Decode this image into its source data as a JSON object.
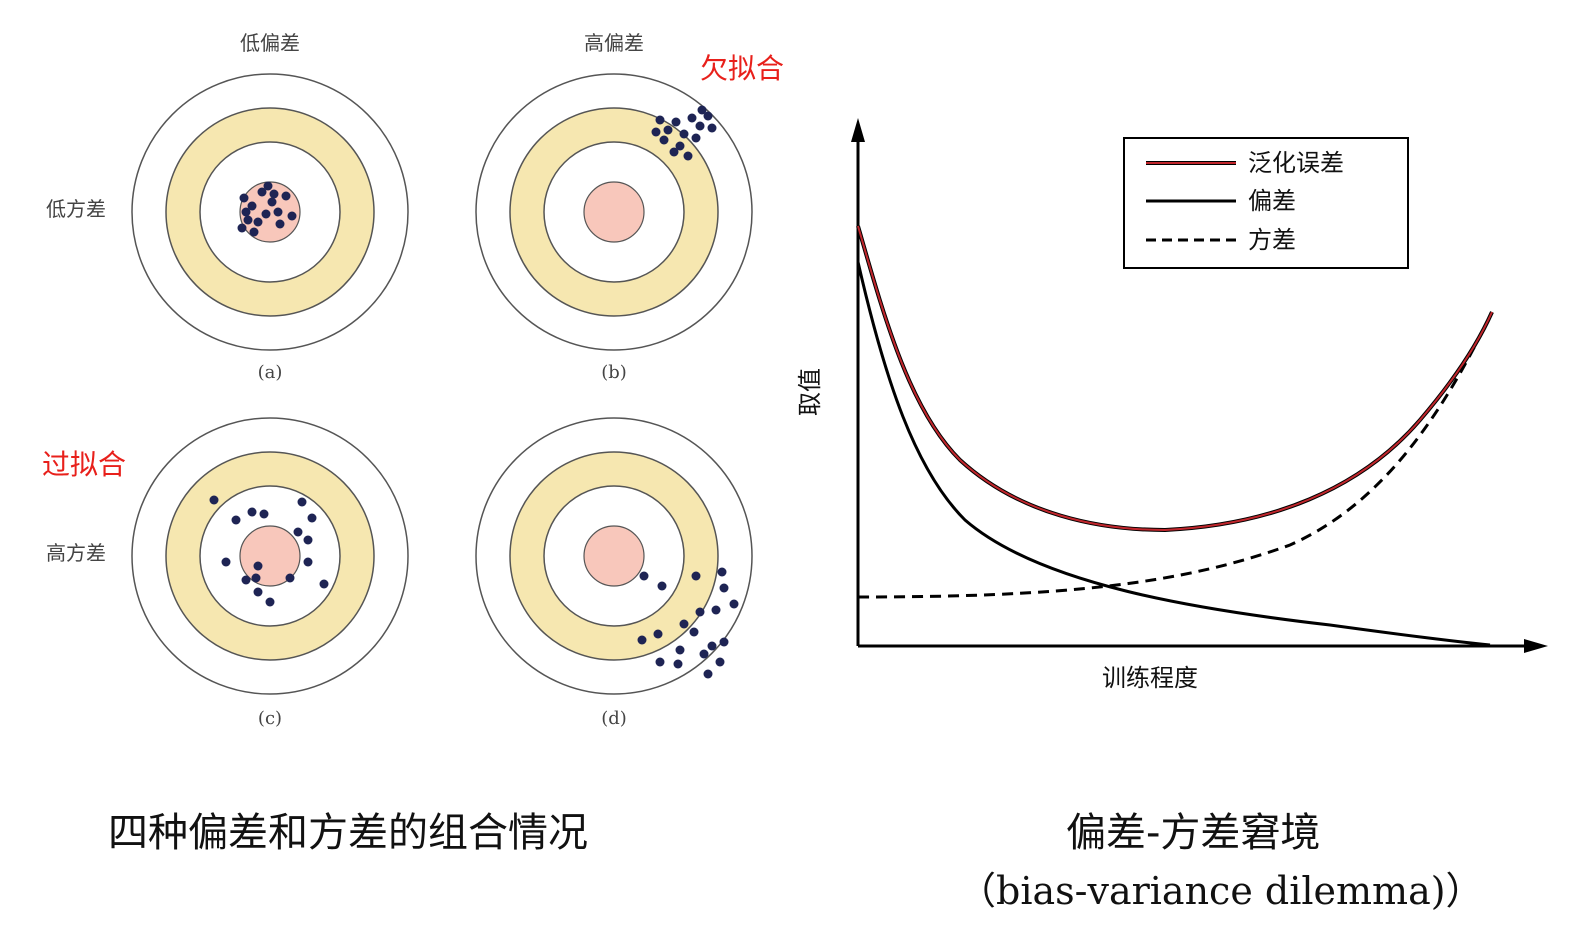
{
  "targets": {
    "col_headers": [
      "低偏差",
      "高偏差"
    ],
    "row_headers": [
      "低方差",
      "高方差"
    ],
    "annotations": {
      "underfit": "欠拟合",
      "overfit": "过拟合"
    },
    "panels": [
      {
        "tag": "(a)"
      },
      {
        "tag": "(b)"
      },
      {
        "tag": "(c)"
      },
      {
        "tag": "(d)"
      }
    ],
    "colors": {
      "ring": "#f6e7b0",
      "bullseye": "#f8c7bb",
      "dot": "#1e2454",
      "stroke": "#555555"
    }
  },
  "captions": {
    "left": "四种偏差和方差的组合情况",
    "right_title": "偏差-方差窘境",
    "right_sub": "（bias-variance dilemma)）"
  },
  "chart_data": {
    "type": "line",
    "xlabel": "训练程度",
    "ylabel": "取值",
    "legend_position": "top-right",
    "grid": false,
    "series": [
      {
        "name": "泛化误差",
        "style": "solid",
        "color": "#c0262c"
      },
      {
        "name": "偏差",
        "style": "solid",
        "color": "#000000"
      },
      {
        "name": "方差",
        "style": "dashed",
        "color": "#000000"
      }
    ]
  }
}
